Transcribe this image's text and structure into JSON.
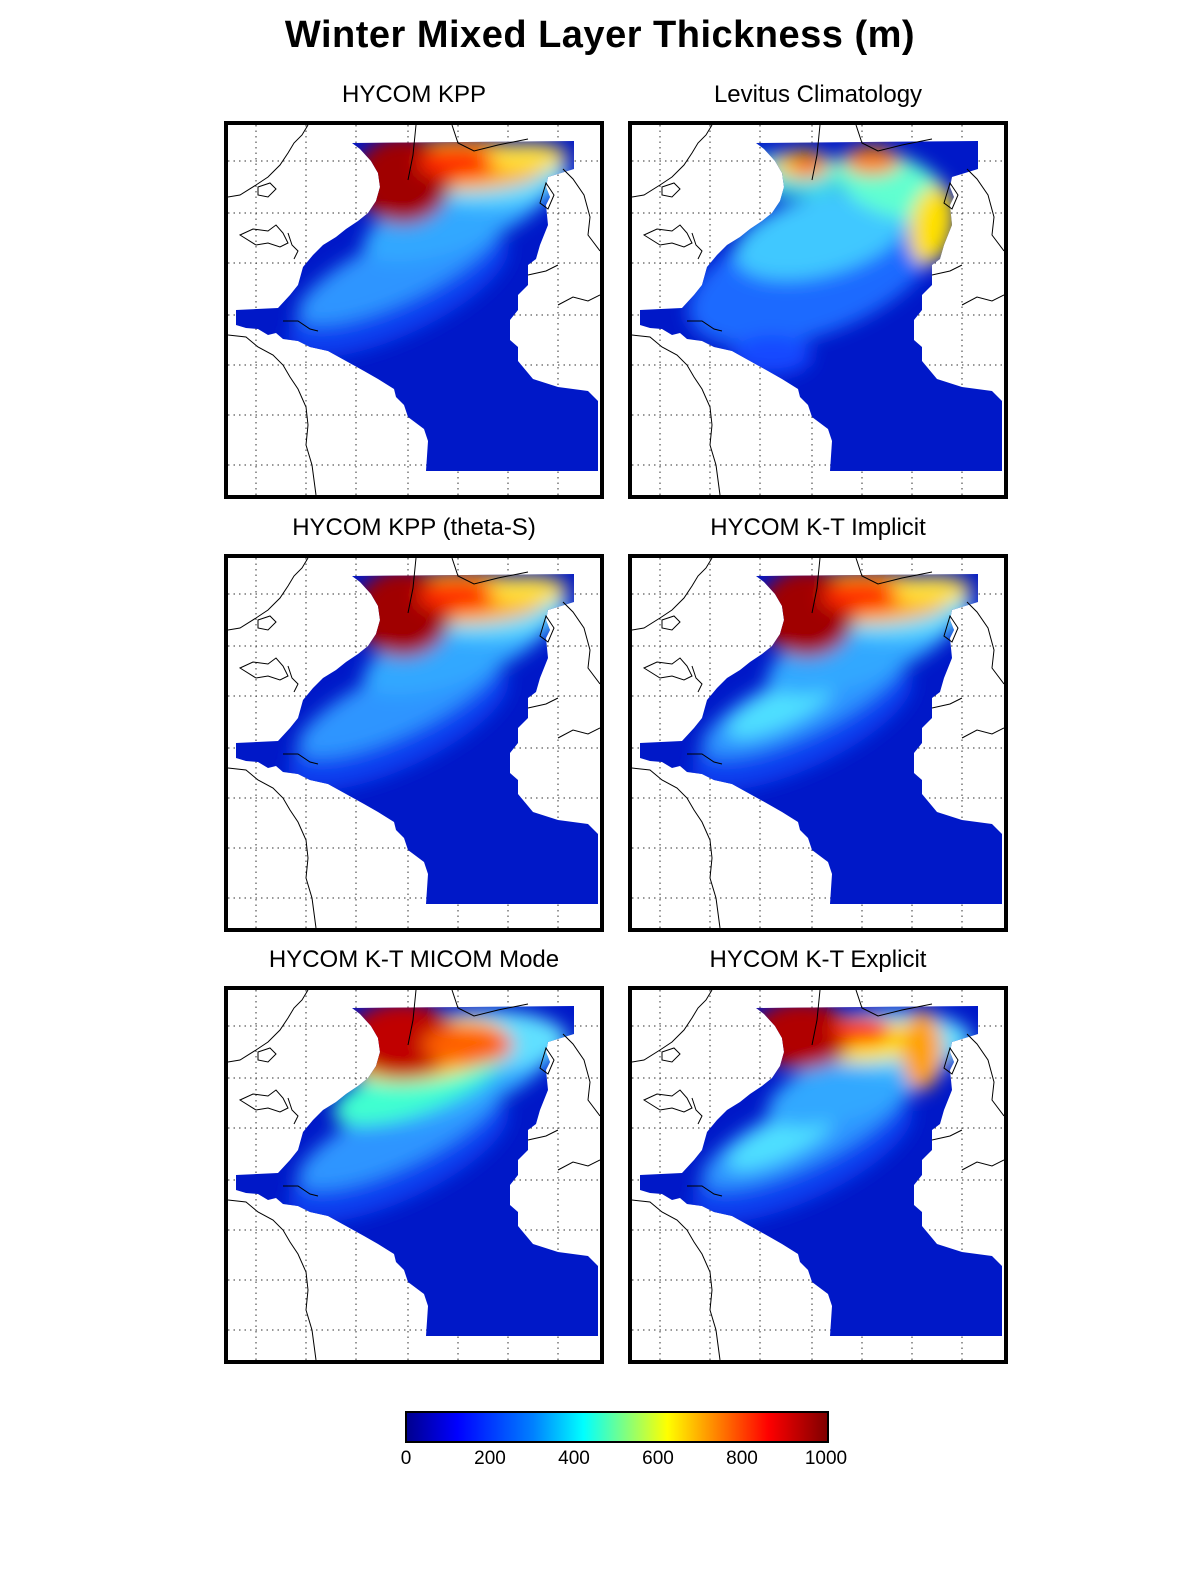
{
  "title": "Winter Mixed Layer Thickness (m)",
  "panels": [
    {
      "title": "HYCOM KPP",
      "variant": "kpp"
    },
    {
      "title": "Levitus Climatology",
      "variant": "levitus"
    },
    {
      "title": "HYCOM KPP (theta-S)",
      "variant": "kpp"
    },
    {
      "title": "HYCOM K-T Implicit",
      "variant": "implicit"
    },
    {
      "title": "HYCOM K-T MICOM Mode",
      "variant": "micom"
    },
    {
      "title": "HYCOM K-T Explicit",
      "variant": "explicit"
    }
  ],
  "colorbar": {
    "ticks": [
      "0",
      "200",
      "400",
      "600",
      "800",
      "1000"
    ],
    "colormap": "jet",
    "colors": {
      "low": "#00008f",
      "mid": "#00ffff",
      "high": "#800000"
    }
  }
}
